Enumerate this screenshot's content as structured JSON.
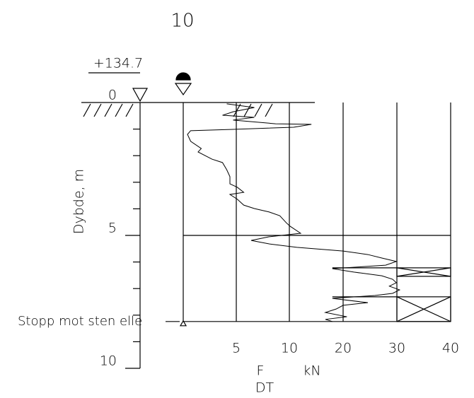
{
  "page_number": "10",
  "chart_data": {
    "type": "line",
    "elevation_label": "+134.7",
    "ylabel": "Dybde, m",
    "xlabel": {
      "main": "F",
      "sub": "DT",
      "unit": "kN"
    },
    "stop_label": "Stopp mot sten elle",
    "stop_depth": 8.24,
    "ylim": [
      0,
      10
    ],
    "yticks": [
      0,
      5,
      10
    ],
    "yminor_ticks": [
      1,
      2,
      3,
      4,
      6,
      7,
      8,
      9
    ],
    "xlim": [
      0,
      40
    ],
    "xticks": [
      5,
      10,
      20,
      30,
      40
    ],
    "boxes": [
      {
        "from": 6.22,
        "to": 6.54
      },
      {
        "from": 7.31,
        "to": 8.24
      }
    ],
    "series": [
      {
        "color": "#000000",
        "x": [
          4.1,
          6.7,
          4.7,
          3.7,
          6.7,
          4.7,
          8.7,
          14.1,
          10.8,
          4.7,
          0.7,
          0.4,
          0.7,
          1.7,
          1.4,
          2.7,
          3.7,
          4.1,
          4.4,
          4.4,
          5.1,
          5.7,
          4.4,
          5.1,
          5.7,
          6.7,
          8.1,
          9.1,
          9.7,
          10.1,
          12.1,
          8.1,
          6.4,
          8.1,
          11.4,
          20.0,
          24.6,
          27.2,
          29.9,
          27.9,
          18.0,
          22.0,
          27.2,
          29.2,
          29.9,
          28.6,
          30.5,
          29.2,
          25.9,
          18.0,
          24.6,
          20.0,
          18.7,
          16.7,
          20.7,
          16.7,
          18.0
        ],
        "values": [
          0.05,
          0.19,
          0.35,
          0.48,
          0.56,
          0.66,
          0.8,
          0.82,
          0.93,
          1.01,
          1.06,
          1.2,
          1.46,
          1.73,
          1.86,
          2.13,
          2.26,
          2.53,
          2.79,
          3.06,
          3.19,
          3.38,
          3.46,
          3.64,
          3.86,
          3.99,
          4.12,
          4.26,
          4.52,
          4.65,
          4.92,
          5.05,
          5.19,
          5.32,
          5.45,
          5.59,
          5.72,
          5.85,
          5.98,
          6.12,
          6.25,
          6.38,
          6.52,
          6.65,
          6.78,
          6.91,
          7.05,
          7.18,
          7.26,
          7.37,
          7.53,
          7.63,
          7.77,
          7.9,
          8.06,
          8.16,
          8.24
        ]
      }
    ]
  }
}
